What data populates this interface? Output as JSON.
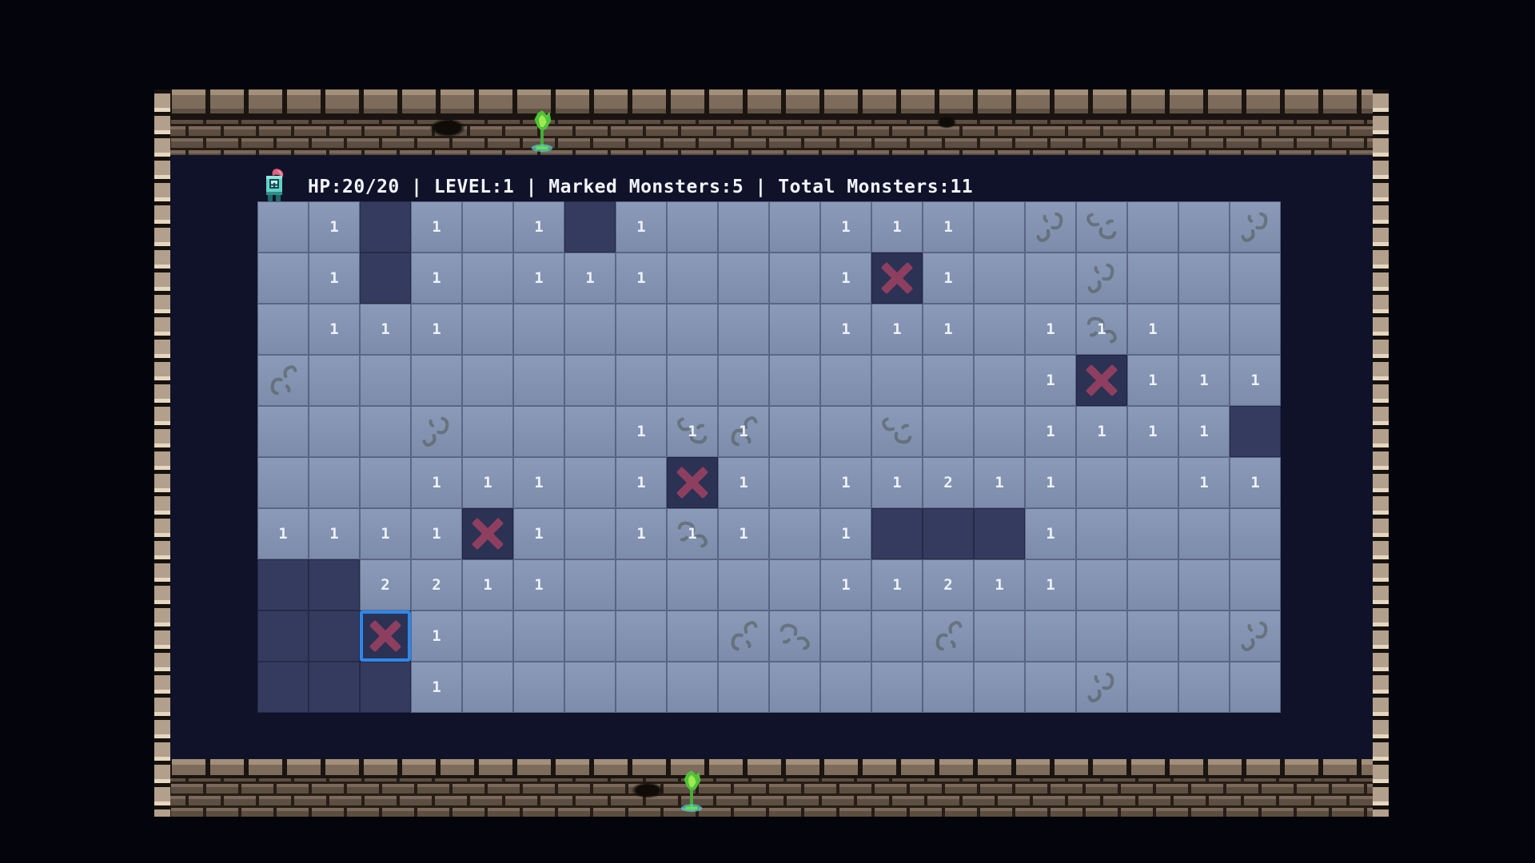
{
  "status_bar": {
    "text": "HP:20/20 | LEVEL:1 | Marked Monsters:5 | Total Monsters:11",
    "hp": "20/20",
    "level": "1",
    "marked_monsters": "5",
    "total_monsters": "11"
  },
  "icons": {
    "player": "knight-icon",
    "wall_decoration": "torch-icon",
    "mark": "monster-x-mark"
  },
  "colors": {
    "page_background": "#04040c",
    "dungeon_interior": "#10122a",
    "cell_revealed": "#8393b2",
    "cell_hidden": "#343b5f",
    "monster_mark": "#8e3f5f",
    "selection_border": "#2f87e8",
    "number_text": "#eef2f9",
    "status_text": "#f2f4f9",
    "brick_light": "#a3907a",
    "brick_dark": "#5d4e42",
    "torch_green": "#4fc238"
  },
  "grid": {
    "cols": 20,
    "rows": 10,
    "cell_codes": {
      ".": "revealed-empty",
      "1": "revealed-number-1",
      "2": "revealed-number-2",
      "u": "unrevealed",
      "x": "marked-monster",
      "s": "marked-monster-selected"
    },
    "rows_map": [
      ".1u1.1u1...111......",
      ".1u1.111...1x1......",
      ".111.......111.111..",
      "...............1x111",
      ".......111.....1111u",
      "...111.1x1.11211..11",
      "1111x1.111.1uuu1....",
      "uu2211.....11211....",
      "uus1................",
      "uuu1................"
    ],
    "cracks": [
      [
        0,
        15
      ],
      [
        0,
        16
      ],
      [
        0,
        19
      ],
      [
        1,
        16
      ],
      [
        2,
        16
      ],
      [
        3,
        0
      ],
      [
        4,
        3
      ],
      [
        4,
        8
      ],
      [
        4,
        9
      ],
      [
        4,
        12
      ],
      [
        6,
        8
      ],
      [
        8,
        9
      ],
      [
        8,
        10
      ],
      [
        8,
        13
      ],
      [
        8,
        19
      ],
      [
        9,
        16
      ]
    ],
    "selected_cell": [
      8,
      2
    ]
  }
}
